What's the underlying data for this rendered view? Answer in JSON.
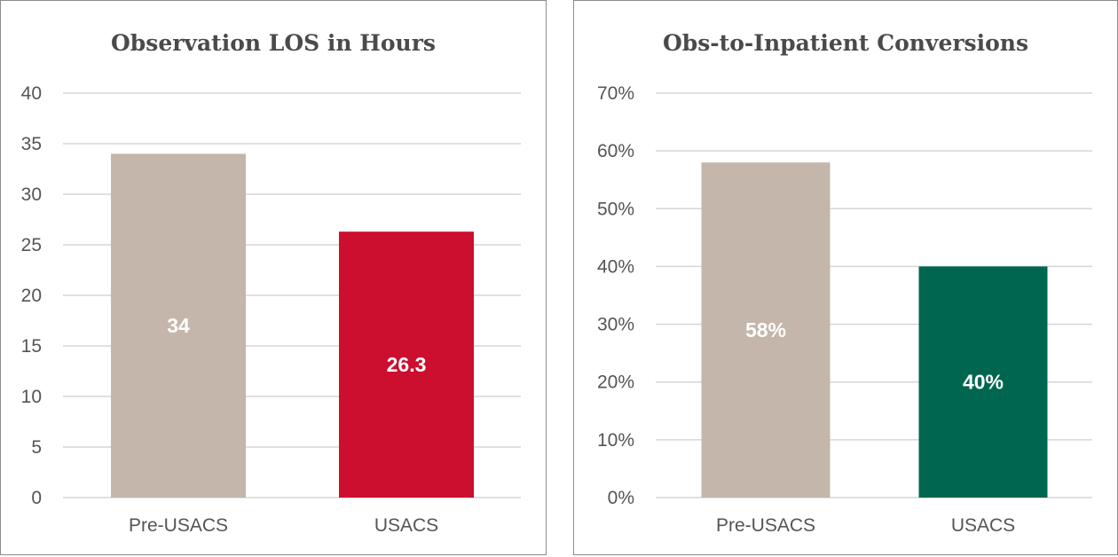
{
  "chart_data": [
    {
      "type": "bar",
      "title": "Observation LOS in Hours",
      "categories": [
        "Pre-USACS",
        "USACS"
      ],
      "values": [
        34,
        26.3
      ],
      "value_labels": [
        "34",
        "26.3"
      ],
      "bar_colors": [
        "#c4b6aa",
        "#cc0e2f"
      ],
      "ylim": [
        0,
        40
      ],
      "yticks": [
        0,
        5,
        10,
        15,
        20,
        25,
        30,
        35,
        40
      ],
      "ytick_labels": [
        "0",
        "5",
        "10",
        "15",
        "20",
        "25",
        "30",
        "35",
        "40"
      ],
      "grid": true,
      "legend": "none"
    },
    {
      "type": "bar",
      "title": "Obs-to-Inpatient Conversions",
      "categories": [
        "Pre-USACS",
        "USACS"
      ],
      "values": [
        58,
        40
      ],
      "value_labels": [
        "58%",
        "40%"
      ],
      "bar_colors": [
        "#c4b6aa",
        "#006650"
      ],
      "ylim": [
        0,
        70
      ],
      "yticks": [
        0,
        10,
        20,
        30,
        40,
        50,
        60,
        70
      ],
      "ytick_labels": [
        "0%",
        "10%",
        "20%",
        "30%",
        "40%",
        "50%",
        "60%",
        "70%"
      ],
      "grid": true,
      "legend": "none"
    }
  ]
}
